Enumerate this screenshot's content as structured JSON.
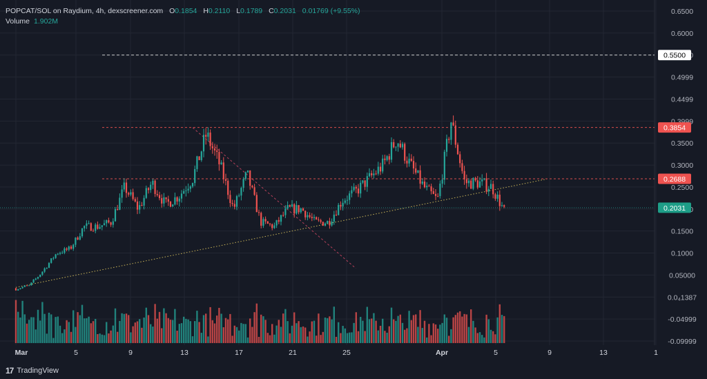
{
  "legend": {
    "pair": "POPCAT/SOL on Raydium, 4h, dexscreener.com",
    "o_label": "O",
    "o": "0.1854",
    "h_label": "H",
    "h": "0.2110",
    "l_label": "L",
    "l": "0.1789",
    "c_label": "C",
    "c": "0.2031",
    "change": "0.01769 (+9.55%)",
    "volume_label": "Volume",
    "volume": "1.902M"
  },
  "brand": {
    "icon": "tradingview-logo-icon",
    "text": "TradingView"
  },
  "colors": {
    "up": "#26a69a",
    "down": "#ef5350",
    "bg": "#161a25",
    "grid": "#232733",
    "text": "#b2b5be",
    "trend": "#c9b458",
    "res": "#ef5350",
    "target": "#ffffff"
  },
  "chart_data": {
    "type": "candlestick",
    "x_axis_labels": [
      "Mar",
      "5",
      "9",
      "13",
      "17",
      "21",
      "25",
      "Apr",
      "5",
      "9",
      "13",
      "1"
    ],
    "y_axis_labels": [
      "0.6500",
      "0.6000",
      "0.5500",
      "0.4999",
      "0.4499",
      "0.3999",
      "0.3500",
      "0.3000",
      "0.2500",
      "0.2000",
      "0.1500",
      "0.1000",
      "0.05000",
      "0.0₄1387",
      "-0.04999",
      "-0.09999"
    ],
    "ylim": [
      -0.1,
      0.65
    ],
    "price_markers": [
      {
        "label": "0.5500",
        "value": 0.55,
        "style": "target"
      },
      {
        "label": "0.3854",
        "value": 0.3854,
        "style": "resistance"
      },
      {
        "label": "0.2688",
        "value": 0.2688,
        "style": "resistance"
      },
      {
        "label": "0.2031",
        "value": 0.2031,
        "style": "last"
      }
    ],
    "trendlines": [
      {
        "from": [
          "Mar 1",
          0.022
        ],
        "to": [
          "Apr 9",
          0.268
        ],
        "style": "dotted"
      },
      {
        "from": [
          "Mar 14",
          0.385
        ],
        "to": [
          "Mar 26",
          0.065
        ],
        "style": "dashed"
      }
    ],
    "close_path": [
      [
        "Mar 1",
        0.02
      ],
      [
        "Mar 2",
        0.025
      ],
      [
        "Mar 3",
        0.06
      ],
      [
        "Mar 4",
        0.1
      ],
      [
        "Mar 5",
        0.11
      ],
      [
        "Mar 6",
        0.16
      ],
      [
        "Mar 7",
        0.16
      ],
      [
        "Mar 8",
        0.17
      ],
      [
        "Mar 9",
        0.25
      ],
      [
        "Mar 10",
        0.2
      ],
      [
        "Mar 11",
        0.26
      ],
      [
        "Mar 12",
        0.21
      ],
      [
        "Mar 13",
        0.23
      ],
      [
        "Mar 14",
        0.27
      ],
      [
        "Mar 15",
        0.37
      ],
      [
        "Mar 16",
        0.3
      ],
      [
        "Mar 17",
        0.2
      ],
      [
        "Mar 18",
        0.28
      ],
      [
        "Mar 19",
        0.17
      ],
      [
        "Mar 20",
        0.16
      ],
      [
        "Mar 21",
        0.2
      ],
      [
        "Mar 22",
        0.2
      ],
      [
        "Mar 23",
        0.17
      ],
      [
        "Mar 24",
        0.17
      ],
      [
        "Mar 25",
        0.22
      ],
      [
        "Mar 26",
        0.24
      ],
      [
        "Mar 27",
        0.27
      ],
      [
        "Mar 28",
        0.3
      ],
      [
        "Mar 29",
        0.36
      ],
      [
        "Mar 30",
        0.3
      ],
      [
        "Mar 31",
        0.25
      ],
      [
        "Apr 1",
        0.22
      ],
      [
        "Apr 2",
        0.4
      ],
      [
        "Apr 3",
        0.26
      ],
      [
        "Apr 4",
        0.26
      ],
      [
        "Apr 5",
        0.25
      ],
      [
        "Apr 6",
        0.19
      ]
    ]
  }
}
